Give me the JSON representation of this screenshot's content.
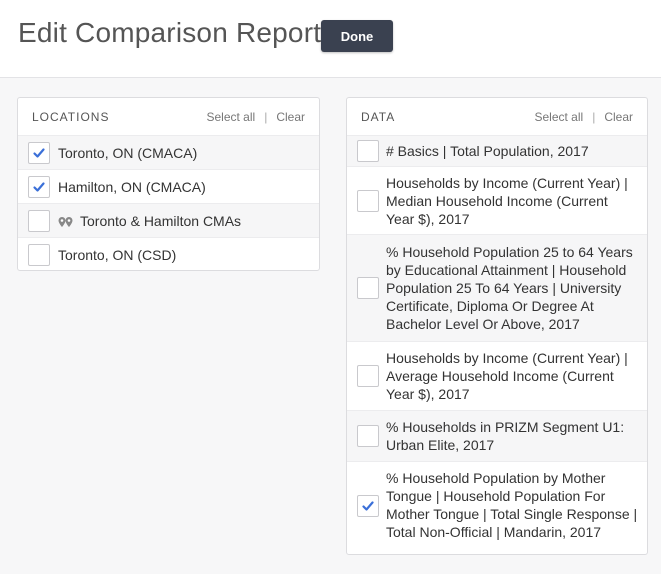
{
  "header": {
    "title": "Edit Comparison Report",
    "done_label": "Done"
  },
  "locations": {
    "title": "LOCATIONS",
    "select_all": "Select all",
    "separator": "|",
    "clear": "Clear",
    "items": [
      {
        "label": "Toronto, ON (CMACA)",
        "checked": true,
        "icon": ""
      },
      {
        "label": "Hamilton, ON (CMACA)",
        "checked": true,
        "icon": ""
      },
      {
        "label": "Toronto & Hamilton CMAs",
        "checked": false,
        "icon": "multi-pin-icon"
      },
      {
        "label": "Toronto, ON (CSD)",
        "checked": false,
        "icon": ""
      }
    ]
  },
  "data": {
    "title": "DATA",
    "select_all": "Select all",
    "separator": "|",
    "clear": "Clear",
    "items": [
      {
        "label": "# Basics | Total Population, 2017",
        "checked": false
      },
      {
        "label": "Households by Income (Current Year) | Median Household Income (Current Year $), 2017",
        "checked": false
      },
      {
        "label": "% Household Population 25 to 64 Years by Educational Attainment | Household Population 25 To 64 Years | University Certificate, Diploma Or Degree At Bachelor Level Or Above, 2017",
        "checked": false
      },
      {
        "label": "Households by Income (Current Year) | Average Household Income (Current Year $), 2017",
        "checked": false
      },
      {
        "label": "% Households in PRIZM Segment U1: Urban Elite, 2017",
        "checked": false
      },
      {
        "label": "% Household Population by Mother Tongue | Household Population For Mother Tongue | Total Single Response | Total Non-Official | Mandarin, 2017",
        "checked": true
      }
    ]
  },
  "colors": {
    "accent": "#3a6fd8",
    "done_bg": "#3a4150"
  }
}
